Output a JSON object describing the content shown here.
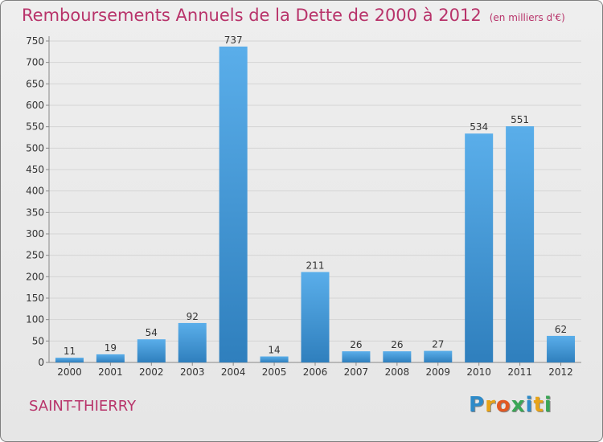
{
  "title": "Remboursements Annuels de la Dette de 2000 à 2012",
  "subtitle": "(en milliers d'€)",
  "commune": "SAINT-THIERRY",
  "logo": {
    "text": "Proxiti",
    "letters": [
      {
        "ch": "P",
        "color": "#2e8bc9"
      },
      {
        "ch": "r",
        "color": "#e8a317"
      },
      {
        "ch": "o",
        "color": "#e25822"
      },
      {
        "ch": "x",
        "color": "#3aa655"
      },
      {
        "ch": "i",
        "color": "#2e8bc9"
      },
      {
        "ch": "t",
        "color": "#e8a317"
      },
      {
        "ch": "i",
        "color": "#3aa655"
      }
    ]
  },
  "colors": {
    "bar_top": "#5aaeea",
    "bar_bottom": "#2f7fbd",
    "accent": "#b8336a",
    "grid": "#d4d4d4"
  },
  "chart_data": {
    "type": "bar",
    "categories": [
      "2000",
      "2001",
      "2002",
      "2003",
      "2004",
      "2005",
      "2006",
      "2007",
      "2008",
      "2009",
      "2010",
      "2011",
      "2012"
    ],
    "values": [
      11,
      19,
      54,
      92,
      737,
      14,
      211,
      26,
      26,
      27,
      534,
      551,
      62
    ],
    "ylim": [
      0,
      750
    ],
    "yticks": [
      0,
      50,
      100,
      150,
      200,
      250,
      300,
      350,
      400,
      450,
      500,
      550,
      600,
      650,
      700,
      750
    ],
    "grid": true
  }
}
